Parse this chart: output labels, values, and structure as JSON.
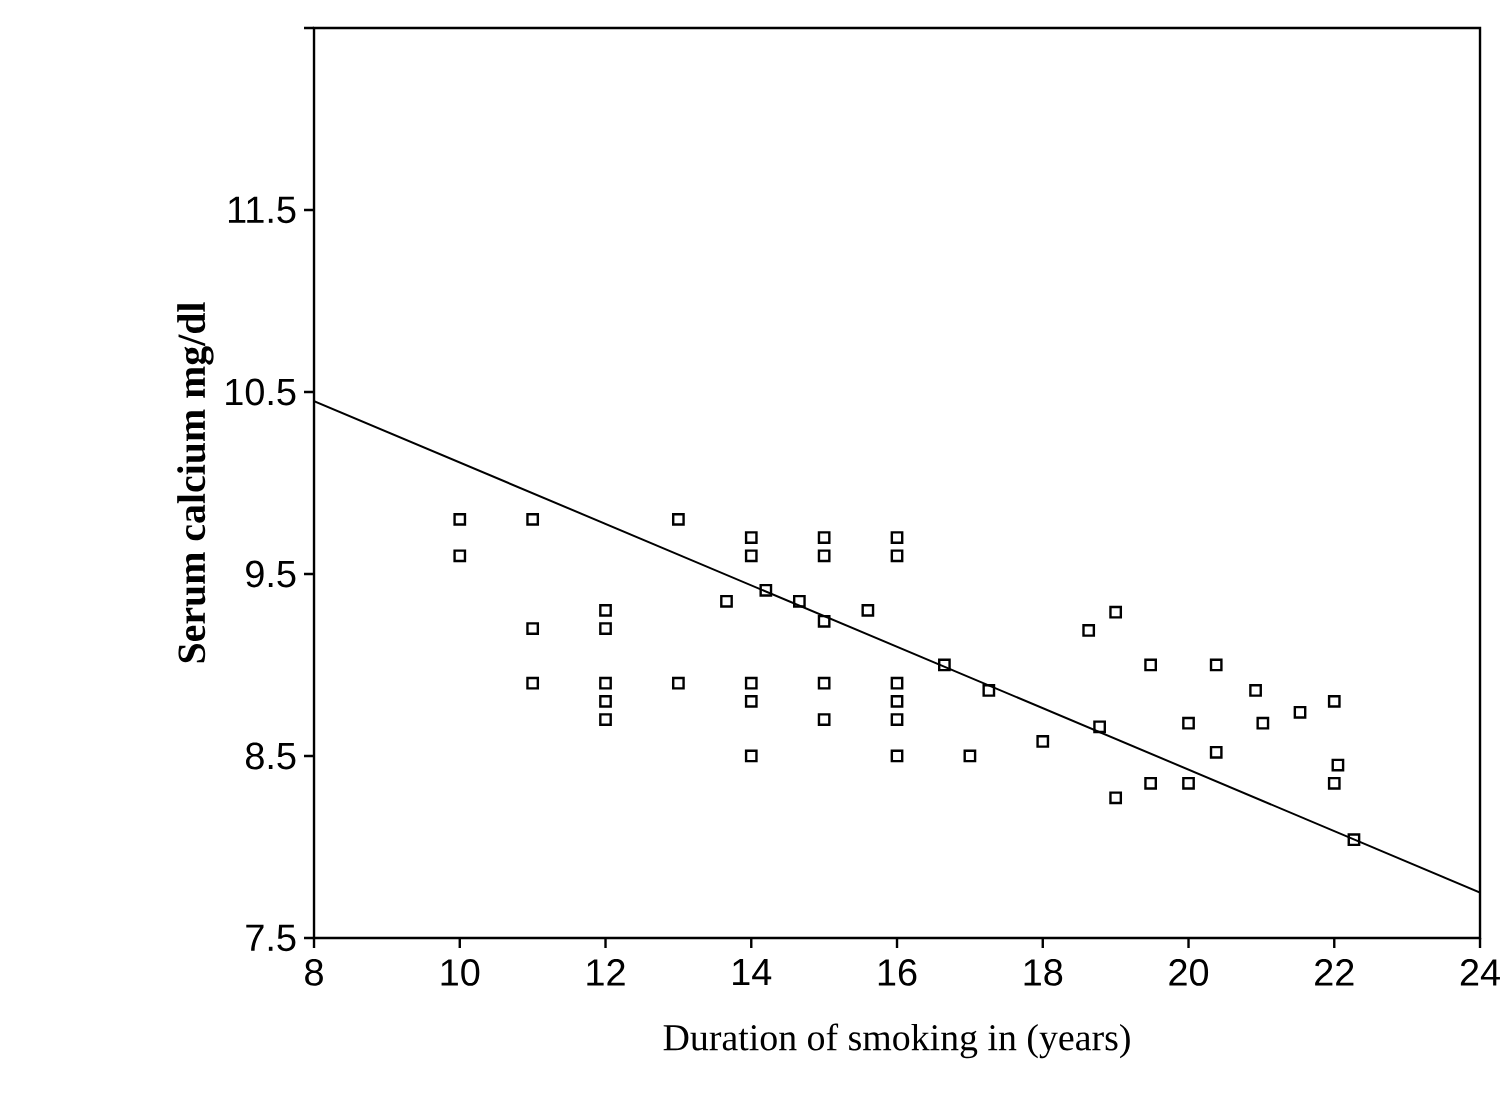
{
  "chart_data": {
    "type": "scatter",
    "xlabel": "Duration of smoking in (years)",
    "ylabel": "Serum calcium mg/dl",
    "xlim": [
      8,
      24
    ],
    "ylim": [
      7.5,
      12.5
    ],
    "xticks": [
      8,
      10,
      12,
      14,
      16,
      18,
      20,
      22,
      24
    ],
    "yticks": [
      7.5,
      8.5,
      9.5,
      10.5,
      11.5,
      {
        "value": 12.5,
        "label": null
      }
    ],
    "marker": "square",
    "grid": false,
    "series": [
      {
        "color": "#000000",
        "x": [
          10,
          10,
          11,
          11,
          11,
          12,
          12,
          12,
          12,
          12,
          13,
          13,
          13.66,
          14,
          14,
          14,
          14,
          14,
          14.2,
          14.66,
          15,
          15,
          15,
          15,
          15,
          15.6,
          16,
          16,
          16,
          16,
          16,
          16,
          16.65,
          17,
          17.26,
          18,
          18.63,
          18.78,
          19,
          19,
          19.48,
          19.48,
          20,
          20,
          20.38,
          20.38,
          20.92,
          21.02,
          21.53,
          22,
          22,
          22.05,
          22.27
        ],
        "values": [
          9.8,
          9.6,
          9.8,
          9.2,
          8.9,
          9.3,
          9.2,
          8.9,
          8.8,
          8.7,
          9.8,
          8.9,
          9.35,
          9.7,
          9.6,
          8.9,
          8.8,
          8.5,
          9.41,
          9.35,
          9.7,
          9.6,
          9.24,
          8.9,
          8.7,
          9.3,
          9.7,
          9.6,
          8.9,
          8.8,
          8.7,
          8.5,
          9.0,
          8.5,
          8.86,
          8.58,
          9.19,
          8.66,
          9.29,
          8.27,
          9.0,
          8.35,
          8.68,
          8.35,
          9.0,
          8.52,
          8.86,
          8.68,
          8.74,
          8.8,
          8.35,
          8.45,
          8.04
        ]
      },
      {
        "type": "line",
        "marker": "none",
        "color": "#000000",
        "x": [
          8,
          24
        ],
        "values": [
          10.45,
          7.75
        ]
      }
    ]
  }
}
